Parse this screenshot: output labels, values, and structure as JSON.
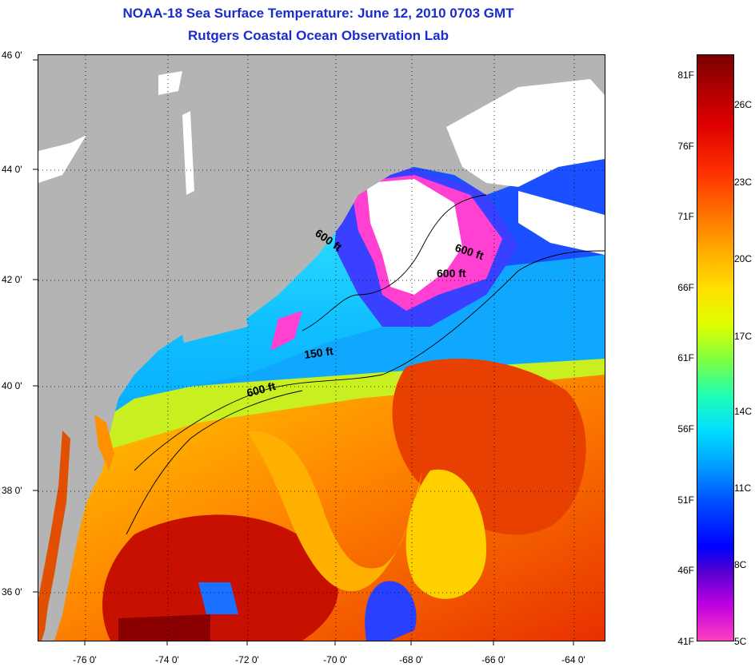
{
  "title": "NOAA-18 Sea Surface Temperature:  June 12, 2010 0703 GMT",
  "subtitle": "Rutgers Coastal Ocean Observation Lab",
  "latitude_labels": [
    "46 0'",
    "44 0'",
    "42 0'",
    "40 0'",
    "38 0'",
    "36 0'"
  ],
  "longitude_labels": [
    "-76 0'",
    "-74 0'",
    "-72 0'",
    "-70 0'",
    "-68 0'",
    "-66 0'",
    "-64 0'"
  ],
  "contour_labels": {
    "a": "600 ft",
    "b": "600 ft",
    "c": "600 ft",
    "d": "150 ft",
    "e": "600 ft"
  },
  "colorbar": {
    "fahrenheit": [
      "81F",
      "76F",
      "71F",
      "66F",
      "61F",
      "56F",
      "51F",
      "46F",
      "41F"
    ],
    "celsius": [
      "26C",
      "23C",
      "20C",
      "17C",
      "14C",
      "11C",
      "8C",
      "5C"
    ]
  },
  "colors": {
    "title": "#1a2ccc",
    "land": "#b4b4b4",
    "cloud": "#ffffff",
    "warm": "#e02000",
    "cold": "#0030ff"
  }
}
